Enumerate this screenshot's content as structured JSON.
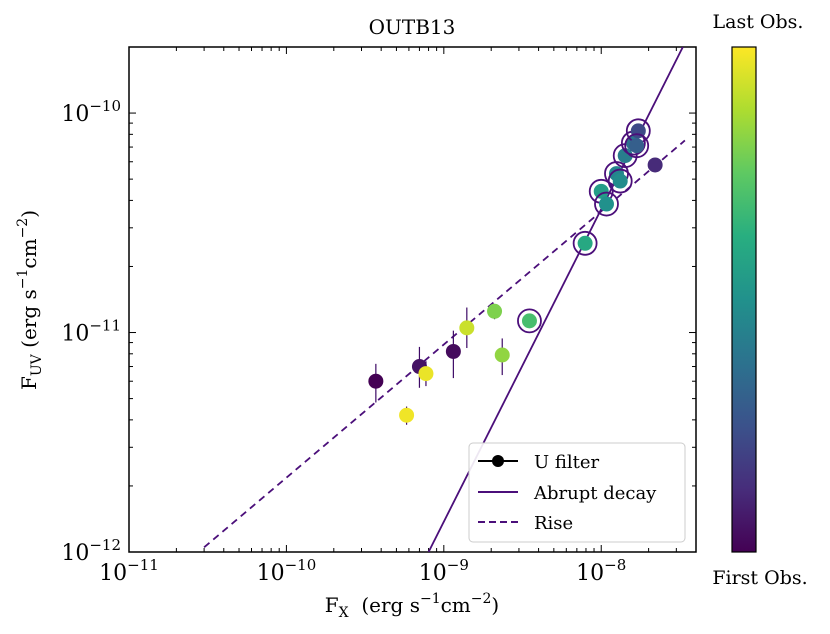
{
  "chart_data": {
    "type": "scatter",
    "title": "OUTB13",
    "xlabel": {
      "main": "F",
      "sub": "X",
      "unit": "  (erg s",
      "exp1": "−1",
      "mid": "cm",
      "exp2": "−2",
      "close": ")"
    },
    "ylabel": {
      "main": "F",
      "sub": "UV",
      "unit": " (erg s",
      "exp1": "−1",
      "mid": "cm",
      "exp2": "−2",
      "close": ")"
    },
    "xscale": "log",
    "yscale": "log",
    "xlim": [
      1e-11,
      4e-08
    ],
    "ylim": [
      1e-12,
      2e-10
    ],
    "xticks": [
      {
        "value": 1e-11,
        "base": "10",
        "exp": "−11"
      },
      {
        "value": 1e-10,
        "base": "10",
        "exp": "−10"
      },
      {
        "value": 1e-09,
        "base": "10",
        "exp": "−9"
      },
      {
        "value": 1e-08,
        "base": "10",
        "exp": "−8"
      }
    ],
    "yticks": [
      {
        "value": 1e-12,
        "base": "10",
        "exp": "−12"
      },
      {
        "value": 1e-11,
        "base": "10",
        "exp": "−11"
      },
      {
        "value": 1e-10,
        "base": "10",
        "exp": "−10"
      }
    ],
    "series": [
      {
        "name": "U filter",
        "kind": "points",
        "points": [
          {
            "x": 3.7e-10,
            "y": 6e-12,
            "yerr": [
              1.2e-12,
              1.2e-12
            ],
            "obs": 0.0,
            "circled": false
          },
          {
            "x": 7e-10,
            "y": 7e-12,
            "yerr": [
              1.4e-12,
              1.6e-12
            ],
            "obs": 0.05,
            "circled": false
          },
          {
            "x": 7.7e-10,
            "y": 6.5e-12,
            "yerr": [
              8e-13,
              9e-13
            ],
            "obs": 0.97,
            "circled": false
          },
          {
            "x": 5.8e-10,
            "y": 4.2e-12,
            "yerr": [
              4e-13,
              4e-13
            ],
            "obs": 0.98,
            "circled": false
          },
          {
            "x": 1.15e-09,
            "y": 8.2e-12,
            "yerr": [
              2e-12,
              2e-12
            ],
            "obs": 0.03,
            "circled": false
          },
          {
            "x": 1.4e-09,
            "y": 1.05e-11,
            "yerr": [
              2e-12,
              2.5e-12
            ],
            "obs": 0.92,
            "circled": false
          },
          {
            "x": 2.1e-09,
            "y": 1.25e-11,
            "yerr": [
              1e-12,
              1e-12
            ],
            "obs": 0.8,
            "circled": false
          },
          {
            "x": 2.35e-09,
            "y": 7.9e-12,
            "yerr": [
              1.5e-12,
              1.5e-12
            ],
            "obs": 0.83,
            "circled": false
          },
          {
            "x": 3.5e-09,
            "y": 1.13e-11,
            "yerr": [
              5e-13,
              5e-13
            ],
            "obs": 0.7,
            "circled": true
          },
          {
            "x": 7.9e-09,
            "y": 2.55e-11,
            "yerr": [
              1e-12,
              1e-12
            ],
            "obs": 0.6,
            "circled": true
          },
          {
            "x": 1e-08,
            "y": 4.4e-11,
            "yerr": [
              1.5e-12,
              1.5e-12
            ],
            "obs": 0.55,
            "circled": true
          },
          {
            "x": 1.08e-08,
            "y": 3.85e-11,
            "yerr": [
              1.5e-12,
              1.5e-12
            ],
            "obs": 0.5,
            "circled": true
          },
          {
            "x": 1.25e-08,
            "y": 5.3e-11,
            "yerr": [
              2e-12,
              2e-12
            ],
            "obs": 0.45,
            "circled": true
          },
          {
            "x": 1.32e-08,
            "y": 4.9e-11,
            "yerr": [
              2e-12,
              2e-12
            ],
            "obs": 0.48,
            "circled": true
          },
          {
            "x": 1.42e-08,
            "y": 6.4e-11,
            "yerr": [
              2e-12,
              2e-12
            ],
            "obs": 0.42,
            "circled": true
          },
          {
            "x": 1.6e-08,
            "y": 7.3e-11,
            "yerr": [
              2.5e-12,
              2.5e-12
            ],
            "obs": 0.38,
            "circled": true
          },
          {
            "x": 1.72e-08,
            "y": 8.3e-11,
            "yerr": [
              2.5e-12,
              2.5e-12
            ],
            "obs": 0.22,
            "circled": true
          },
          {
            "x": 1.68e-08,
            "y": 7.1e-11,
            "yerr": [
              2.5e-12,
              2.5e-12
            ],
            "obs": 0.3,
            "circled": true
          },
          {
            "x": 2.2e-08,
            "y": 5.8e-11,
            "yerr": [
              1.5e-12,
              1.5e-12
            ],
            "obs": 0.12,
            "circled": false
          }
        ]
      },
      {
        "name": "Abrupt decay",
        "kind": "line",
        "style": "solid",
        "x": [
          8e-10,
          3.3e-08
        ],
        "y": [
          1e-12,
          2e-10
        ]
      },
      {
        "name": "Rise",
        "kind": "line",
        "style": "dashed",
        "x": [
          3e-11,
          3.4e-08
        ],
        "y": [
          1.05e-12,
          7.5e-11
        ]
      }
    ],
    "legend": {
      "position": "lower-right",
      "entries": [
        "U filter",
        "Abrupt decay",
        "Rise"
      ]
    },
    "colorbar": {
      "colormap": "viridis",
      "top_label": "Last Obs.",
      "bottom_label": "First Obs."
    },
    "colors": {
      "line": "#4b0f7a",
      "circle": "#4b0f7a",
      "error_bar": "#3d0a66"
    }
  }
}
